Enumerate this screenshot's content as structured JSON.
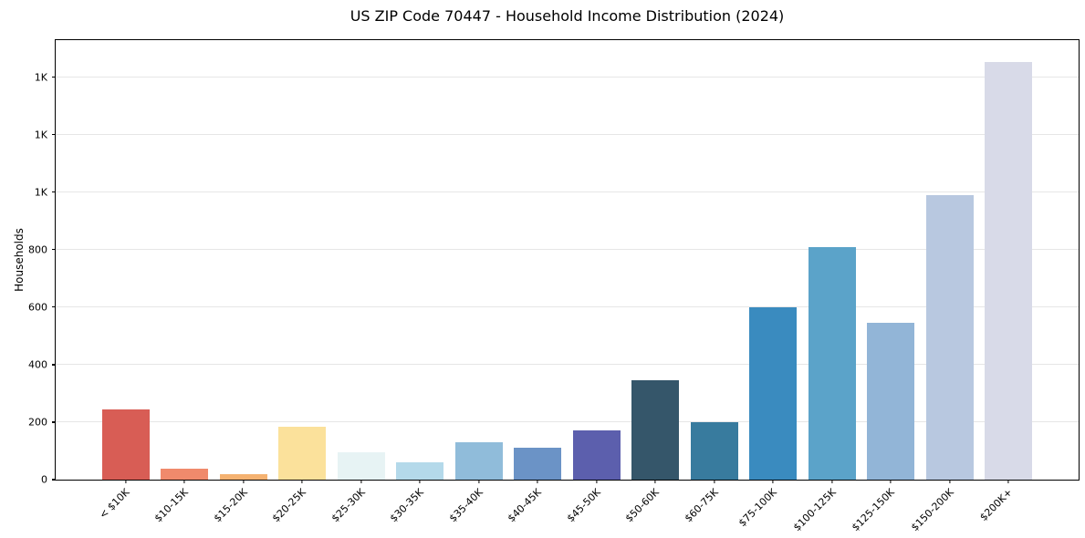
{
  "title": "US ZIP Code 70447 - Household Income Distribution (2024)",
  "chart_data": {
    "type": "bar",
    "title": "US ZIP Code 70447 - Household Income Distribution (2024)",
    "xlabel": "",
    "ylabel": "Households",
    "categories": [
      "< $10K",
      "$10-15K",
      "$15-20K",
      "$20-25K",
      "$25-30K",
      "$30-35K",
      "$35-40K",
      "$40-45K",
      "$45-50K",
      "$50-60K",
      "$60-75K",
      "$75-100K",
      "$100-125K",
      "$125-150K",
      "$150-200K",
      "$200K+"
    ],
    "values": [
      245,
      38,
      20,
      185,
      95,
      60,
      130,
      110,
      172,
      345,
      200,
      600,
      810,
      545,
      990,
      1455
    ],
    "bar_colors": [
      "#d85d55",
      "#f08a6c",
      "#f5b271",
      "#fbe19b",
      "#e7f3f4",
      "#b4d9ea",
      "#90bcda",
      "#6b93c6",
      "#5c5fad",
      "#35566a",
      "#387b9e",
      "#3a8bbf",
      "#5ba3c9",
      "#92b5d7",
      "#b8c8e0",
      "#d8dae8"
    ],
    "ylim": [
      0,
      1530
    ],
    "yticks": [
      {
        "value": 0,
        "label": "0"
      },
      {
        "value": 200,
        "label": "200"
      },
      {
        "value": 400,
        "label": "400"
      },
      {
        "value": 600,
        "label": "600"
      },
      {
        "value": 800,
        "label": "800"
      },
      {
        "value": 1000,
        "label": "1K"
      },
      {
        "value": 1200,
        "label": "1K"
      },
      {
        "value": 1400,
        "label": "1K"
      }
    ],
    "grid": "horizontal",
    "legend": "none",
    "colors": {
      "background": "#ffffff",
      "grid": "#e6e6e6",
      "spine": "#000000",
      "text": "#000000"
    }
  }
}
